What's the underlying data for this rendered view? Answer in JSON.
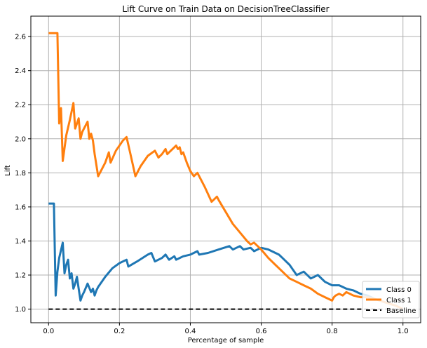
{
  "chart_data": {
    "type": "line",
    "title": "Lift Curve on Train Data on DecisionTreeClassifier",
    "xlabel": "Percentage of sample",
    "ylabel": "Lift",
    "xlim": [
      -0.05,
      1.05
    ],
    "ylim": [
      0.92,
      2.72
    ],
    "x_ticks": [
      "0.0",
      "0.2",
      "0.4",
      "0.6",
      "0.8",
      "1.0"
    ],
    "x_tick_values": [
      0.0,
      0.2,
      0.4,
      0.6,
      0.8,
      1.0
    ],
    "y_ticks": [
      "1.0",
      "1.2",
      "1.4",
      "1.6",
      "1.8",
      "2.0",
      "2.2",
      "2.4",
      "2.6"
    ],
    "y_tick_values": [
      1.0,
      1.2,
      1.4,
      1.6,
      1.8,
      2.0,
      2.2,
      2.4,
      2.6
    ],
    "grid": true,
    "legend_position": "lower-right",
    "series": [
      {
        "name": "Class 0",
        "color": "#1f77b4",
        "style": "solid",
        "x": [
          0.0,
          0.01,
          0.015,
          0.02,
          0.025,
          0.03,
          0.04,
          0.045,
          0.05,
          0.055,
          0.06,
          0.065,
          0.07,
          0.075,
          0.08,
          0.085,
          0.09,
          0.095,
          0.1,
          0.11,
          0.12,
          0.125,
          0.13,
          0.135,
          0.14,
          0.16,
          0.18,
          0.2,
          0.22,
          0.225,
          0.25,
          0.28,
          0.29,
          0.3,
          0.32,
          0.33,
          0.34,
          0.355,
          0.36,
          0.38,
          0.4,
          0.42,
          0.425,
          0.45,
          0.48,
          0.51,
          0.52,
          0.53,
          0.54,
          0.55,
          0.57,
          0.58,
          0.6,
          0.62,
          0.64,
          0.65,
          0.66,
          0.68,
          0.7,
          0.72,
          0.74,
          0.76,
          0.78,
          0.8,
          0.82,
          0.84,
          0.86,
          0.88,
          0.9,
          0.92,
          0.95,
          0.98,
          1.0
        ],
        "y": [
          1.62,
          1.62,
          1.62,
          1.08,
          1.22,
          1.3,
          1.39,
          1.21,
          1.26,
          1.29,
          1.18,
          1.21,
          1.12,
          1.15,
          1.19,
          1.12,
          1.05,
          1.08,
          1.1,
          1.15,
          1.1,
          1.12,
          1.08,
          1.11,
          1.13,
          1.19,
          1.24,
          1.27,
          1.29,
          1.25,
          1.28,
          1.32,
          1.33,
          1.28,
          1.3,
          1.32,
          1.29,
          1.31,
          1.29,
          1.31,
          1.32,
          1.34,
          1.32,
          1.33,
          1.35,
          1.37,
          1.35,
          1.36,
          1.37,
          1.35,
          1.36,
          1.34,
          1.36,
          1.35,
          1.33,
          1.32,
          1.3,
          1.26,
          1.2,
          1.22,
          1.18,
          1.2,
          1.16,
          1.14,
          1.14,
          1.12,
          1.11,
          1.09,
          1.08,
          1.06,
          1.04,
          1.02,
          1.0
        ]
      },
      {
        "name": "Class 1",
        "color": "#ff7f0e",
        "style": "solid",
        "x": [
          0.0,
          0.01,
          0.02,
          0.025,
          0.03,
          0.035,
          0.04,
          0.05,
          0.06,
          0.07,
          0.075,
          0.08,
          0.085,
          0.09,
          0.095,
          0.1,
          0.11,
          0.115,
          0.12,
          0.125,
          0.13,
          0.14,
          0.16,
          0.17,
          0.175,
          0.19,
          0.21,
          0.22,
          0.23,
          0.245,
          0.26,
          0.28,
          0.3,
          0.31,
          0.32,
          0.33,
          0.335,
          0.34,
          0.36,
          0.365,
          0.37,
          0.375,
          0.38,
          0.39,
          0.4,
          0.41,
          0.42,
          0.44,
          0.46,
          0.475,
          0.48,
          0.5,
          0.52,
          0.54,
          0.56,
          0.57,
          0.58,
          0.59,
          0.6,
          0.62,
          0.64,
          0.66,
          0.68,
          0.7,
          0.72,
          0.74,
          0.76,
          0.78,
          0.8,
          0.805,
          0.81,
          0.82,
          0.83,
          0.84,
          0.86,
          0.88,
          0.9,
          0.92,
          0.95,
          0.98,
          1.0
        ],
        "y": [
          2.62,
          2.62,
          2.62,
          2.62,
          2.09,
          2.18,
          1.87,
          2.02,
          2.11,
          2.21,
          2.06,
          2.09,
          2.12,
          2.0,
          2.04,
          2.06,
          2.1,
          2.0,
          2.03,
          1.99,
          1.91,
          1.78,
          1.86,
          1.92,
          1.86,
          1.93,
          1.99,
          2.01,
          1.92,
          1.78,
          1.84,
          1.9,
          1.93,
          1.89,
          1.91,
          1.94,
          1.91,
          1.92,
          1.96,
          1.94,
          1.95,
          1.91,
          1.92,
          1.86,
          1.81,
          1.78,
          1.8,
          1.72,
          1.63,
          1.66,
          1.64,
          1.57,
          1.5,
          1.45,
          1.4,
          1.38,
          1.39,
          1.37,
          1.35,
          1.3,
          1.26,
          1.22,
          1.18,
          1.16,
          1.14,
          1.12,
          1.09,
          1.07,
          1.05,
          1.07,
          1.08,
          1.09,
          1.08,
          1.1,
          1.08,
          1.07,
          1.07,
          1.06,
          1.04,
          1.02,
          1.0
        ]
      },
      {
        "name": "Baseline",
        "color": "#000000",
        "style": "dashed",
        "x": [
          0.0,
          1.0
        ],
        "y": [
          1.0,
          1.0
        ]
      }
    ]
  }
}
